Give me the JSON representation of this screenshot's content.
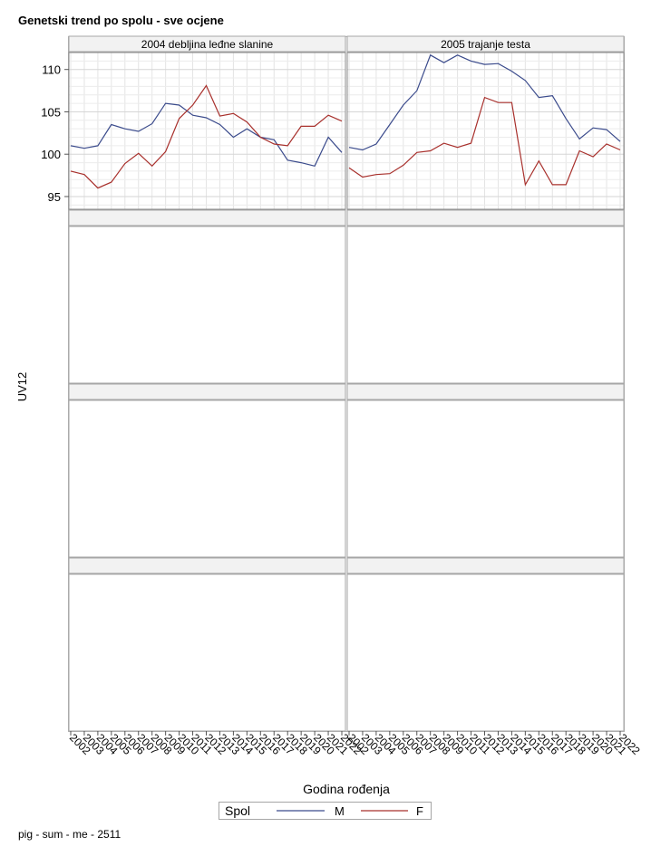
{
  "page": {
    "title": "Genetski trend po spolu - sve ocjene",
    "footer": "pig - sum - me - 2511"
  },
  "chart_data": {
    "type": "line",
    "title": "Genetski trend po spolu - sve ocjene",
    "ylabel": "UV12",
    "xlabel": "Godina rođenja",
    "ylim": [
      93.5,
      112
    ],
    "yticks": [
      95,
      100,
      105,
      110
    ],
    "x": [
      2002,
      2003,
      2004,
      2005,
      2006,
      2007,
      2008,
      2009,
      2010,
      2011,
      2012,
      2013,
      2014,
      2015,
      2016,
      2017,
      2018,
      2019,
      2020,
      2021,
      2022
    ],
    "legend": {
      "title": "Spol",
      "position": "bottom"
    },
    "series_colors": {
      "M": "#3b4b8c",
      "F": "#a8302c"
    },
    "panels": [
      {
        "label": "2004 debljina leđne slanine",
        "series": [
          {
            "name": "M",
            "values": [
              101.0,
              100.7,
              101.0,
              103.5,
              103.0,
              102.7,
              103.6,
              106.0,
              105.8,
              104.6,
              104.3,
              103.5,
              102.0,
              103.0,
              102.0,
              101.7,
              99.3,
              99.0,
              98.6,
              102.0,
              100.2
            ]
          },
          {
            "name": "F",
            "values": [
              98.0,
              97.6,
              96.0,
              96.7,
              98.9,
              100.1,
              98.6,
              100.3,
              104.2,
              105.8,
              108.1,
              104.5,
              104.8,
              103.8,
              102.0,
              101.2,
              101.0,
              103.3,
              103.3,
              104.6,
              103.9
            ]
          }
        ]
      },
      {
        "label": "2005 trajanje testa",
        "series": [
          {
            "name": "M",
            "values": [
              100.8,
              100.5,
              101.2,
              103.5,
              105.8,
              107.5,
              111.7,
              110.8,
              111.7,
              111.0,
              110.6,
              110.7,
              109.8,
              108.7,
              106.7,
              106.9,
              104.2,
              101.8,
              103.1,
              102.9,
              101.5
            ]
          },
          {
            "name": "F",
            "values": [
              98.4,
              97.3,
              97.6,
              97.7,
              98.7,
              100.2,
              100.4,
              101.3,
              100.8,
              101.3,
              106.7,
              106.1,
              106.1,
              96.4,
              99.2,
              96.4,
              96.4,
              100.4,
              99.7,
              101.2,
              100.5
            ]
          }
        ]
      }
    ]
  }
}
